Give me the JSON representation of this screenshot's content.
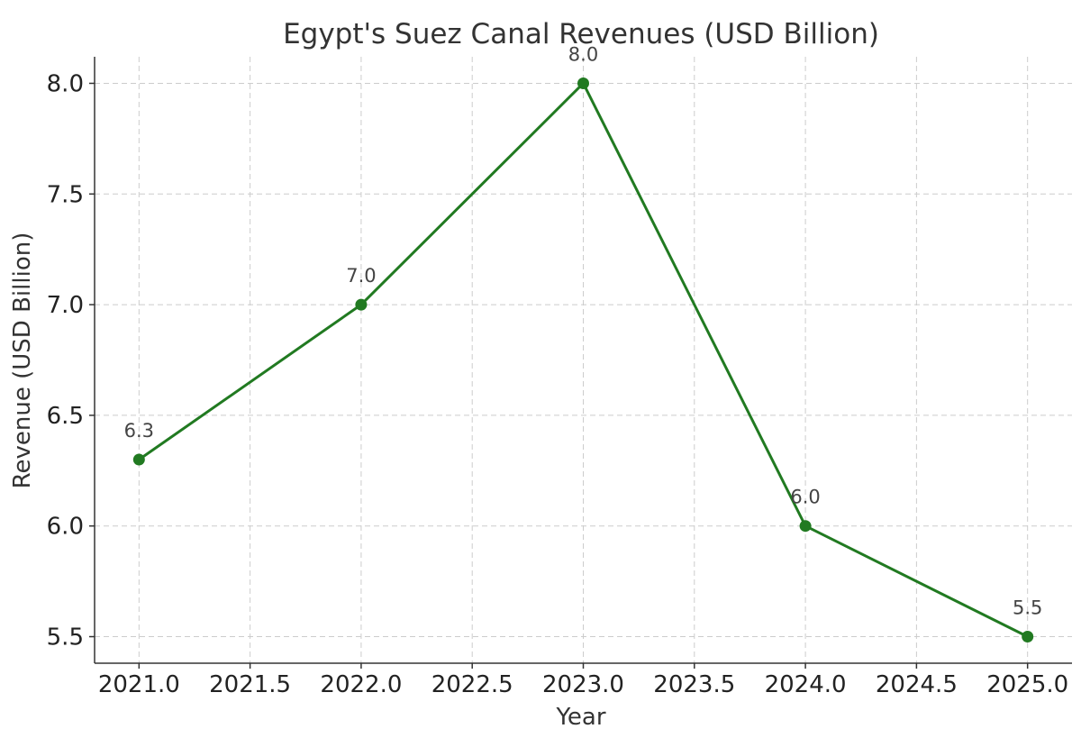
{
  "chart_data": {
    "type": "line",
    "title": "Egypt's Suez Canal Revenues (USD Billion)",
    "xlabel": "Year",
    "ylabel": "Revenue (USD Billion)",
    "xlim": [
      2020.8,
      2025.2
    ],
    "ylim": [
      5.38,
      8.12
    ],
    "x_ticks": [
      2021.0,
      2021.5,
      2022.0,
      2022.5,
      2023.0,
      2023.5,
      2024.0,
      2024.5,
      2025.0
    ],
    "x_tick_labels": [
      "2021.0",
      "2021.5",
      "2022.0",
      "2022.5",
      "2023.0",
      "2023.5",
      "2024.0",
      "2024.5",
      "2025.0"
    ],
    "y_ticks": [
      5.5,
      6.0,
      6.5,
      7.0,
      7.5,
      8.0
    ],
    "y_tick_labels": [
      "5.5",
      "6.0",
      "6.5",
      "7.0",
      "7.5",
      "8.0"
    ],
    "grid": true,
    "series": [
      {
        "color": "#217a21",
        "x": [
          2021,
          2022,
          2023,
          2024,
          2025
        ],
        "y": [
          6.3,
          7.0,
          8.0,
          6.0,
          5.5
        ],
        "data_labels": [
          "6.3",
          "7.0",
          "8.0",
          "6.0",
          "5.5"
        ]
      }
    ]
  }
}
